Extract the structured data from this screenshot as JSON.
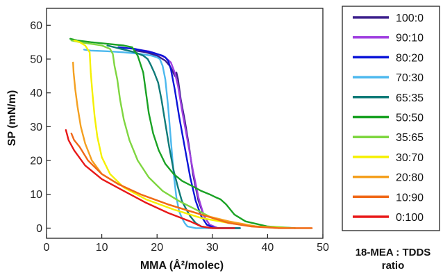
{
  "chart_data": {
    "type": "line",
    "xlabel": "MMA (Å²/molec)",
    "ylabel": "SP (mN/m)",
    "xlim": [
      0,
      50
    ],
    "ylim": [
      -3,
      65
    ],
    "xticks": [
      0,
      10,
      20,
      30,
      40,
      50
    ],
    "yticks": [
      0,
      10,
      20,
      30,
      40,
      50,
      60
    ],
    "grid": false,
    "legend_position": "right",
    "legend_title": "18-MEA : TDDS ratio",
    "series": [
      {
        "name": "100:0",
        "color": "#3b1f8c",
        "x": [
          35,
          31,
          29.5,
          28.5,
          27.5,
          26.5,
          25.8,
          25.0,
          24.3,
          23.8,
          23.5,
          23.2,
          22.8,
          22.3,
          21.5,
          20,
          18,
          16
        ],
        "y": [
          0,
          0,
          1,
          3.5,
          8,
          16,
          24,
          32,
          38,
          44,
          46,
          45,
          46.5,
          48,
          49.5,
          51,
          52,
          52.5
        ]
      },
      {
        "name": "90:10",
        "color": "#a040e0",
        "x": [
          35,
          31,
          29.5,
          28.5,
          27.5,
          26.5,
          25.5,
          24.5,
          23.8,
          23.2,
          22.5,
          21.5,
          20,
          18.5,
          16.5
        ],
        "y": [
          0,
          0,
          1,
          3.5,
          9,
          17,
          26,
          35,
          42,
          46,
          49,
          50.5,
          51.5,
          52.3,
          52.8
        ]
      },
      {
        "name": "80:20",
        "color": "#0a14d8",
        "x": [
          35,
          30.5,
          29,
          28,
          27,
          26,
          25,
          24,
          23.2,
          22.5,
          22,
          21.5,
          21,
          19,
          16,
          13
        ],
        "y": [
          0,
          0,
          1,
          3.5,
          8,
          15,
          24,
          33,
          41,
          47,
          49.5,
          50.5,
          51,
          52,
          53,
          53.5
        ]
      },
      {
        "name": "70:30",
        "color": "#4bb8ee",
        "x": [
          35,
          30,
          27,
          25.5,
          25,
          24.5,
          24,
          23.5,
          23,
          22.5,
          22,
          21.5,
          21,
          20.5,
          20,
          19,
          17,
          14,
          11,
          8,
          6.8
        ],
        "y": [
          0,
          0,
          0,
          0.5,
          1.5,
          3,
          5,
          9,
          16,
          26,
          36,
          44,
          48,
          50,
          50.5,
          51,
          51.5,
          52,
          52.3,
          52.5,
          52.8
        ]
      },
      {
        "name": "65:35",
        "color": "#0e7a78",
        "x": [
          35,
          30,
          28,
          27,
          26,
          25.3,
          24.5,
          23.8,
          23,
          22.2,
          21.5,
          20.8,
          20.2,
          19.5,
          18.8,
          18.3,
          17.5,
          16,
          13.5,
          11
        ],
        "y": [
          0,
          0,
          0.5,
          1.5,
          3.5,
          5.5,
          8,
          12,
          17,
          24,
          31,
          38,
          43,
          46,
          48.5,
          50,
          51,
          52,
          53,
          54
        ]
      },
      {
        "name": "50:50",
        "color": "#1aa224",
        "x": [
          45,
          40,
          36,
          34,
          32.5,
          31.5,
          30.5,
          29.5,
          28,
          26.5,
          24.5,
          23,
          21.5,
          20.3,
          19.3,
          18.5,
          18,
          17.5,
          16.5,
          15.5,
          14,
          11,
          8,
          5.5,
          4.3
        ],
        "y": [
          0,
          0.5,
          2,
          4,
          7,
          8.5,
          9.2,
          10,
          11,
          12.3,
          14,
          16,
          19,
          23,
          28,
          34,
          40,
          46,
          51,
          53.5,
          54,
          54.5,
          55,
          55.5,
          56
        ]
      },
      {
        "name": "35:65",
        "color": "#7fd640",
        "x": [
          45,
          38,
          33,
          30,
          27,
          24,
          21,
          18.5,
          16.5,
          15,
          14,
          13.3,
          12.8,
          12.3,
          12,
          11.5,
          10,
          8,
          6,
          4.5
        ],
        "y": [
          0,
          0.5,
          1.5,
          3,
          5.5,
          8,
          11,
          15,
          20,
          26,
          32,
          38,
          44,
          48,
          51.5,
          53,
          54,
          54.5,
          55,
          55.5
        ]
      },
      {
        "name": "30:70",
        "color": "#f5f000",
        "x": [
          44,
          38,
          33,
          28,
          23,
          18,
          14,
          11.5,
          10,
          9.2,
          8.7,
          8.3,
          8,
          7.8,
          7,
          6,
          5
        ],
        "y": [
          0,
          0.5,
          1.5,
          3,
          5.5,
          8.5,
          12,
          16,
          21,
          27,
          33,
          40,
          46,
          52,
          54,
          55,
          55.5
        ]
      },
      {
        "name": "20:80",
        "color": "#f4a020",
        "x": [
          48,
          42,
          38,
          33,
          28,
          22,
          17,
          13,
          10,
          8.2,
          7,
          6.2,
          5.6,
          5.2,
          4.9,
          4.8
        ],
        "y": [
          0,
          0,
          0.5,
          2,
          4,
          7,
          10,
          13,
          16,
          20,
          25,
          30,
          36,
          41,
          46,
          49
        ]
      },
      {
        "name": "10:90",
        "color": "#f06818",
        "x": [
          48,
          42,
          37,
          33,
          28,
          22,
          17,
          13,
          10,
          7.5,
          6,
          5,
          4.5
        ],
        "y": [
          0,
          0,
          0.5,
          1.5,
          4,
          7,
          10,
          13,
          16,
          20,
          24,
          26,
          28
        ]
      },
      {
        "name": "0:100",
        "color": "#e81818",
        "x": [
          34,
          30,
          28,
          26,
          22,
          18,
          14,
          10,
          7,
          5,
          4,
          3.5
        ],
        "y": [
          0,
          0,
          0.5,
          2,
          4.5,
          7.5,
          11,
          14.5,
          18.5,
          23,
          26,
          29
        ]
      }
    ]
  }
}
